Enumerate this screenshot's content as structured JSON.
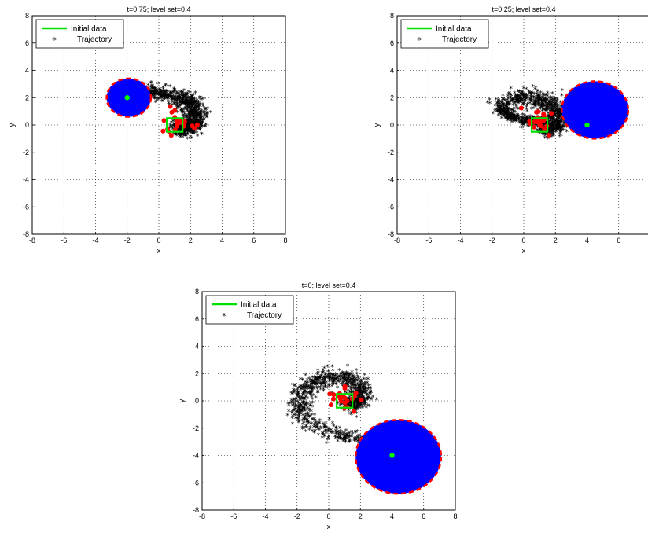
{
  "chart_data": [
    {
      "type": "scatter",
      "title": "t=0.75; level set=0.4",
      "xlabel": "x",
      "ylabel": "y",
      "xlim": [
        -8,
        8
      ],
      "ylim": [
        -8,
        8
      ],
      "xticks": [
        -8,
        -6,
        -4,
        -2,
        0,
        2,
        4,
        6,
        8
      ],
      "yticks": [
        -8,
        -6,
        -4,
        -2,
        0,
        2,
        4,
        6,
        8
      ],
      "grid": true,
      "legend_position": "top-left",
      "legend": [
        "Initial data",
        "Trajectory"
      ],
      "colors": {
        "initial_data": "#00e000",
        "trajectory": "#000000",
        "disk": "#0000ff",
        "disk_edge": "#ff0000",
        "red_points": "#ff0000",
        "center_point": "#00ff00"
      },
      "initial_data_box": {
        "x": [
          0.5,
          1.5
        ],
        "y": [
          -0.5,
          0.5
        ]
      },
      "disk": {
        "cx": -1.9,
        "cy": 2.0,
        "r": 1.4
      },
      "center_point": [
        -2,
        2
      ],
      "trajectory_spiral": {
        "turn": 1.1,
        "max_radius": 4.5
      }
    },
    {
      "type": "scatter",
      "title": "t=0.25; level set=0.4",
      "xlabel": "x",
      "ylabel": "y",
      "xlim": [
        -8,
        8
      ],
      "ylim": [
        -8,
        8
      ],
      "xticks": [
        -8,
        -6,
        -4,
        -2,
        0,
        2,
        4,
        6,
        8
      ],
      "yticks": [
        -8,
        -6,
        -4,
        -2,
        0,
        2,
        4,
        6,
        8
      ],
      "grid": true,
      "legend_position": "top-left",
      "legend": [
        "Initial data",
        "Trajectory"
      ],
      "colors": {
        "initial_data": "#00e000",
        "trajectory": "#000000",
        "disk": "#0000ff",
        "disk_edge": "#ff0000",
        "red_points": "#ff0000",
        "center_point": "#00ff00"
      },
      "initial_data_box": {
        "x": [
          0.5,
          1.5
        ],
        "y": [
          -0.5,
          0.5
        ]
      },
      "disk": {
        "cx": 4.5,
        "cy": 1.1,
        "r": 2.1
      },
      "center_point": [
        4,
        0
      ],
      "trajectory_spiral": {
        "turn": 1.55,
        "max_radius": 5.4
      }
    },
    {
      "type": "scatter",
      "title": "t=0; level set=0.4",
      "xlabel": "x",
      "ylabel": "y",
      "xlim": [
        -8,
        8
      ],
      "ylim": [
        -8,
        8
      ],
      "xticks": [
        -8,
        -6,
        -4,
        -2,
        0,
        2,
        4,
        6,
        8
      ],
      "yticks": [
        -8,
        -6,
        -4,
        -2,
        0,
        2,
        4,
        6,
        8
      ],
      "grid": true,
      "legend_position": "top-left",
      "legend": [
        "Initial data",
        "Trajectory"
      ],
      "colors": {
        "initial_data": "#00e000",
        "trajectory": "#000000",
        "disk": "#0000ff",
        "disk_edge": "#ff0000",
        "red_points": "#ff0000",
        "center_point": "#00ff00"
      },
      "initial_data_box": {
        "x": [
          0.5,
          1.5
        ],
        "y": [
          -0.5,
          0.5
        ]
      },
      "disk": {
        "cx": 4.4,
        "cy": -4.1,
        "r": 2.7
      },
      "center_point": [
        4,
        -4
      ],
      "trajectory_spiral": {
        "turn": 1.95,
        "max_radius": 5.9
      }
    }
  ]
}
